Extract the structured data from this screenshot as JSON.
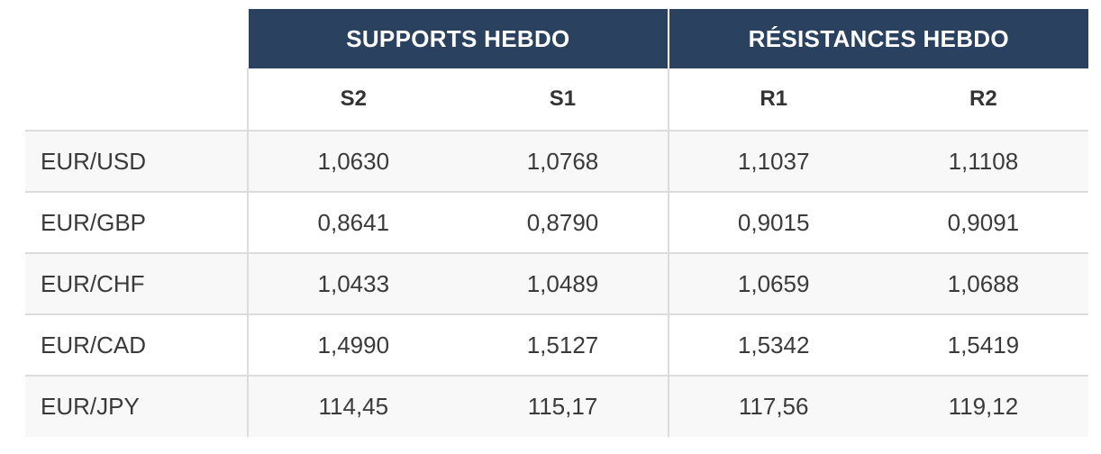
{
  "table": {
    "group_headers": {
      "supports": "SUPPORTS  HEBDO",
      "resistances": "RÉSISTANCES  HEBDO"
    },
    "level_headers": [
      "S2",
      "S1",
      "R1",
      "R2"
    ],
    "rows": [
      {
        "pair": "EUR/USD",
        "values": [
          "1,0630",
          "1,0768",
          "1,1037",
          "1,1108"
        ]
      },
      {
        "pair": "EUR/GBP",
        "values": [
          "0,8641",
          "0,8790",
          "0,9015",
          "0,9091"
        ]
      },
      {
        "pair": "EUR/CHF",
        "values": [
          "1,0433",
          "1,0489",
          "1,0659",
          "1,0688"
        ]
      },
      {
        "pair": "EUR/CAD",
        "values": [
          "1,4990",
          "1,5127",
          "1,5342",
          "1,5419"
        ]
      },
      {
        "pair": "EUR/JPY",
        "values": [
          "114,45",
          "115,17",
          "117,56",
          "119,12"
        ]
      }
    ]
  },
  "colors": {
    "header_bg": "#2a4260",
    "header_text": "#ffffff",
    "grid_line": "#dcdcdc",
    "stripe": "#f8f8f8"
  }
}
